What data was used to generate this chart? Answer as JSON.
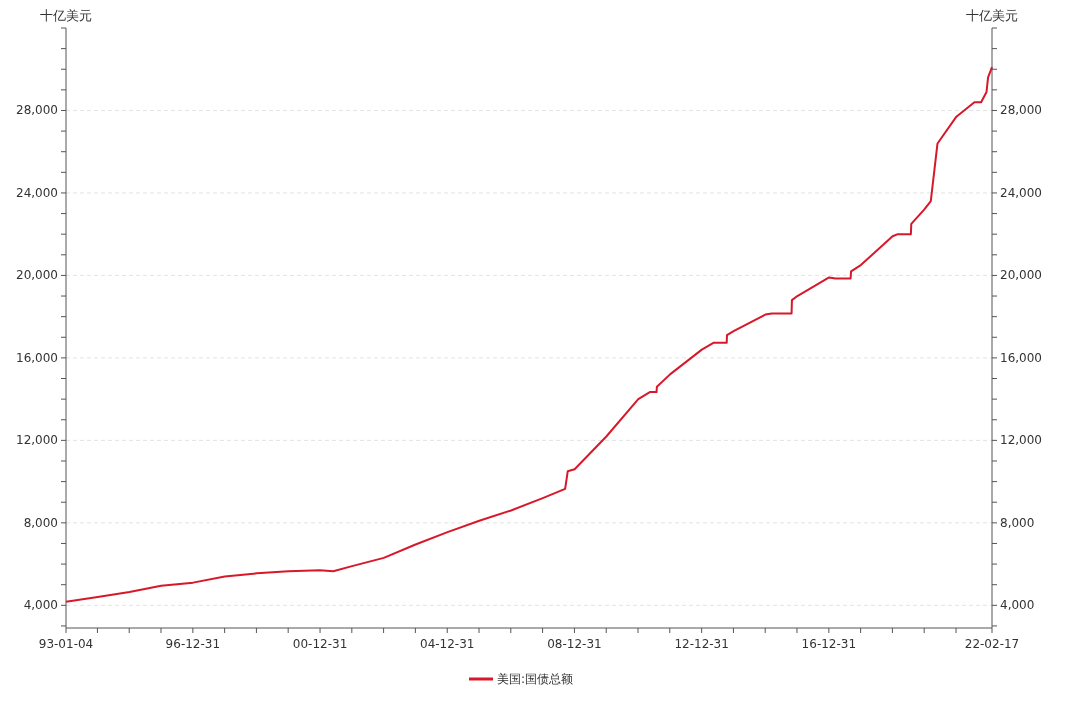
{
  "chart_data": {
    "type": "line",
    "ylabel": "十亿美元",
    "y2label": "十亿美元",
    "xlim": [
      "1993-01-04",
      "2022-02-17"
    ],
    "xticks": [
      {
        "value": "1993-01-04",
        "label": "93-01-04"
      },
      {
        "value": "1993-12-31",
        "label": null
      },
      {
        "value": "1994-12-31",
        "label": null
      },
      {
        "value": "1995-12-31",
        "label": null
      },
      {
        "value": "1996-12-31",
        "label": "96-12-31"
      },
      {
        "value": "1997-12-31",
        "label": null
      },
      {
        "value": "1998-12-31",
        "label": null
      },
      {
        "value": "1999-12-31",
        "label": null
      },
      {
        "value": "2000-12-31",
        "label": "00-12-31"
      },
      {
        "value": "2001-12-31",
        "label": null
      },
      {
        "value": "2002-12-31",
        "label": null
      },
      {
        "value": "2003-12-31",
        "label": null
      },
      {
        "value": "2004-12-31",
        "label": "04-12-31"
      },
      {
        "value": "2005-12-31",
        "label": null
      },
      {
        "value": "2006-12-31",
        "label": null
      },
      {
        "value": "2007-12-31",
        "label": null
      },
      {
        "value": "2008-12-31",
        "label": "08-12-31"
      },
      {
        "value": "2009-12-31",
        "label": null
      },
      {
        "value": "2010-12-31",
        "label": null
      },
      {
        "value": "2011-12-31",
        "label": null
      },
      {
        "value": "2012-12-31",
        "label": "12-12-31"
      },
      {
        "value": "2013-12-31",
        "label": null
      },
      {
        "value": "2014-12-31",
        "label": null
      },
      {
        "value": "2015-12-31",
        "label": null
      },
      {
        "value": "2016-12-31",
        "label": "16-12-31"
      },
      {
        "value": "2017-12-31",
        "label": null
      },
      {
        "value": "2018-12-31",
        "label": null
      },
      {
        "value": "2019-12-31",
        "label": null
      },
      {
        "value": "2020-12-31",
        "label": null
      },
      {
        "value": "2022-02-17",
        "label": "22-02-17"
      }
    ],
    "ylim": [
      2900,
      32000
    ],
    "yticks": [
      {
        "value": 3000,
        "label": null
      },
      {
        "value": 4000,
        "label": "4,000"
      },
      {
        "value": 5000,
        "label": null
      },
      {
        "value": 6000,
        "label": null
      },
      {
        "value": 7000,
        "label": null
      },
      {
        "value": 8000,
        "label": "8,000"
      },
      {
        "value": 9000,
        "label": null
      },
      {
        "value": 10000,
        "label": null
      },
      {
        "value": 11000,
        "label": null
      },
      {
        "value": 12000,
        "label": "12,000"
      },
      {
        "value": 13000,
        "label": null
      },
      {
        "value": 14000,
        "label": null
      },
      {
        "value": 15000,
        "label": null
      },
      {
        "value": 16000,
        "label": "16,000"
      },
      {
        "value": 17000,
        "label": null
      },
      {
        "value": 18000,
        "label": null
      },
      {
        "value": 19000,
        "label": null
      },
      {
        "value": 20000,
        "label": "20,000"
      },
      {
        "value": 21000,
        "label": null
      },
      {
        "value": 22000,
        "label": null
      },
      {
        "value": 23000,
        "label": null
      },
      {
        "value": 24000,
        "label": "24,000"
      },
      {
        "value": 25000,
        "label": null
      },
      {
        "value": 26000,
        "label": null
      },
      {
        "value": 27000,
        "label": null
      },
      {
        "value": 28000,
        "label": "28,000"
      },
      {
        "value": 29000,
        "label": null
      },
      {
        "value": 30000,
        "label": null
      },
      {
        "value": 31000,
        "label": null
      },
      {
        "value": 32000,
        "label": null
      }
    ],
    "y2lim": [
      2900,
      32000
    ],
    "y2ticks": [
      {
        "value": 3000,
        "label": null
      },
      {
        "value": 4000,
        "label": "4,000"
      },
      {
        "value": 5000,
        "label": null
      },
      {
        "value": 6000,
        "label": null
      },
      {
        "value": 7000,
        "label": null
      },
      {
        "value": 8000,
        "label": "8,000"
      },
      {
        "value": 9000,
        "label": null
      },
      {
        "value": 10000,
        "label": null
      },
      {
        "value": 11000,
        "label": null
      },
      {
        "value": 12000,
        "label": "12,000"
      },
      {
        "value": 13000,
        "label": null
      },
      {
        "value": 14000,
        "label": null
      },
      {
        "value": 15000,
        "label": null
      },
      {
        "value": 16000,
        "label": "16,000"
      },
      {
        "value": 17000,
        "label": null
      },
      {
        "value": 18000,
        "label": null
      },
      {
        "value": 19000,
        "label": null
      },
      {
        "value": 20000,
        "label": "20,000"
      },
      {
        "value": 21000,
        "label": null
      },
      {
        "value": 22000,
        "label": null
      },
      {
        "value": 23000,
        "label": null
      },
      {
        "value": 24000,
        "label": "24,000"
      },
      {
        "value": 25000,
        "label": null
      },
      {
        "value": 26000,
        "label": null
      },
      {
        "value": 27000,
        "label": null
      },
      {
        "value": 28000,
        "label": "28,000"
      },
      {
        "value": 29000,
        "label": null
      },
      {
        "value": 30000,
        "label": null
      },
      {
        "value": 31000,
        "label": null
      },
      {
        "value": 32000,
        "label": null
      }
    ],
    "grid": "y",
    "legend": "bottom",
    "x": [
      "1993-01-04",
      "1994-01-03",
      "1995-01-03",
      "1996-01-02",
      "1997-01-02",
      "1998-01-02",
      "1999-01-04",
      "2000-01-03",
      "2000-12-29",
      "2001-06-01",
      "2002-01-02",
      "2003-01-02",
      "2004-01-02",
      "2005-01-03",
      "2006-01-03",
      "2007-01-03",
      "2008-01-02",
      "2008-09-15",
      "2008-10-15",
      "2009-01-02",
      "2010-01-04",
      "2011-01-03",
      "2011-05-16",
      "2011-08-01",
      "2011-08-05",
      "2012-01-03",
      "2013-01-02",
      "2013-05-20",
      "2013-10-15",
      "2013-10-18",
      "2014-01-02",
      "2015-01-02",
      "2015-03-16",
      "2015-10-30",
      "2015-11-03",
      "2016-01-04",
      "2017-01-03",
      "2017-03-16",
      "2017-09-07",
      "2017-09-12",
      "2018-01-02",
      "2019-01-02",
      "2019-03-04",
      "2019-07-31",
      "2019-08-05",
      "2020-01-02",
      "2020-03-16",
      "2020-06-01",
      "2021-01-04",
      "2021-07-30",
      "2021-10-15",
      "2021-12-16",
      "2022-01-03",
      "2022-02-17"
    ],
    "series": [
      {
        "name": "美国:国债总额",
        "color": "#d7182a",
        "values": [
          4170,
          4400,
          4650,
          4950,
          5100,
          5400,
          5550,
          5650,
          5700,
          5650,
          5900,
          6300,
          6950,
          7550,
          8100,
          8600,
          9200,
          9650,
          10500,
          10600,
          12200,
          14000,
          14340,
          14340,
          14600,
          15200,
          16400,
          16740,
          16740,
          17100,
          17300,
          18100,
          18150,
          18150,
          18800,
          19000,
          19900,
          19850,
          19850,
          20200,
          20500,
          21900,
          22000,
          22000,
          22500,
          23200,
          23600,
          26400,
          27700,
          28400,
          28400,
          28900,
          29600,
          30100
        ]
      }
    ]
  }
}
